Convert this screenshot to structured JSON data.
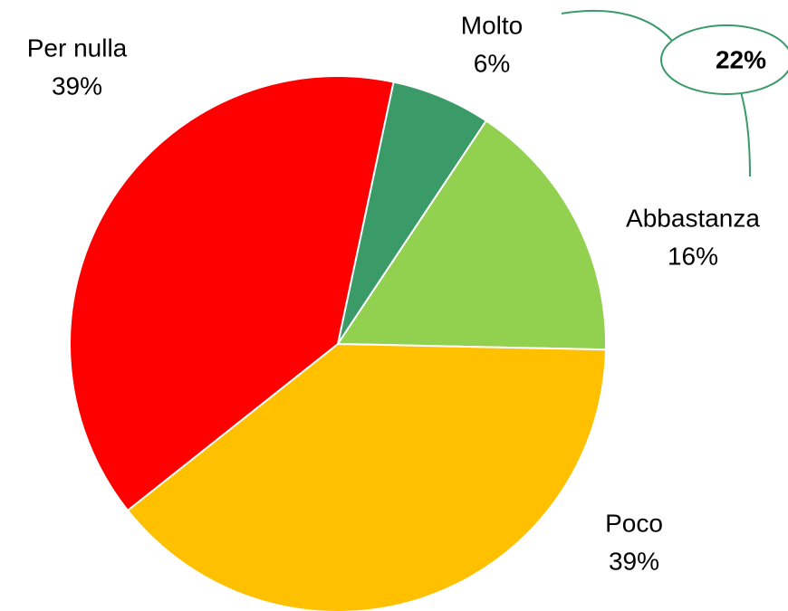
{
  "chart_data": {
    "type": "pie",
    "categories": [
      "Molto",
      "Abbastanza",
      "Poco",
      "Per nulla"
    ],
    "values": [
      6,
      16,
      39,
      39
    ],
    "value_labels": [
      "6%",
      "16%",
      "39%",
      "39%"
    ],
    "colors": [
      "#3a9a68",
      "#92d050",
      "#ffc000",
      "#ff0000"
    ],
    "annotation": "22%"
  }
}
